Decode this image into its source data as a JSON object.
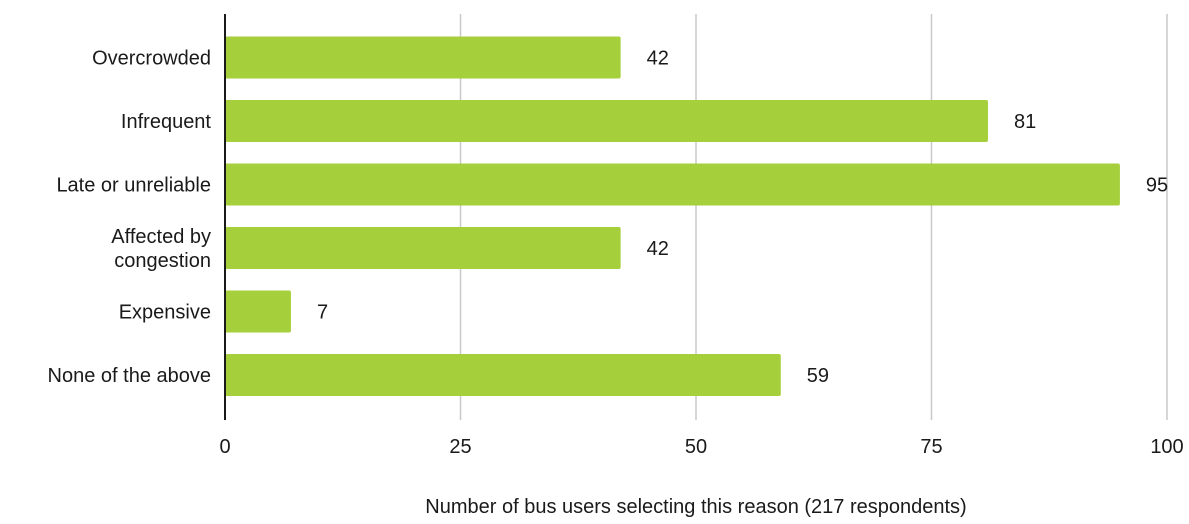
{
  "chart_data": {
    "type": "bar",
    "orientation": "horizontal",
    "title": "",
    "xlabel": "Number of bus users selecting this reason (217 respondents)",
    "ylabel": "",
    "categories": [
      [
        "Overcrowded"
      ],
      [
        "Infrequent"
      ],
      [
        "Late or unreliable"
      ],
      [
        "Affected by",
        "congestion"
      ],
      [
        "Expensive"
      ],
      [
        "None of the above"
      ]
    ],
    "values": [
      42,
      81,
      95,
      42,
      7,
      59
    ],
    "xlim": [
      0,
      100
    ],
    "xticks": [
      0,
      25,
      50,
      75,
      100
    ],
    "grid": "vertical",
    "legend": "none",
    "bar_color": "#a5cf3b",
    "grid_color": "#c8c8c8",
    "axis_color": "#1a1a1a"
  }
}
